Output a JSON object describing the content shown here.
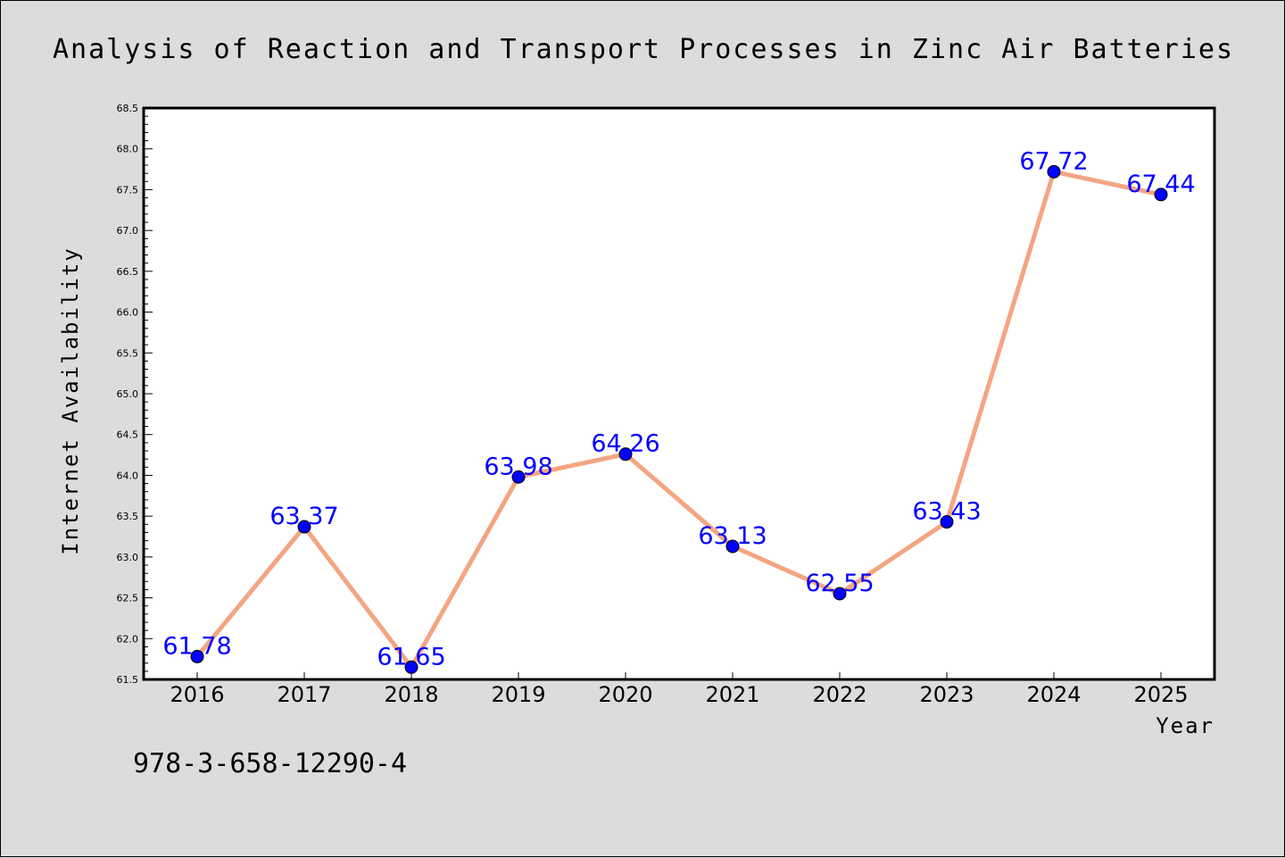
{
  "chart_data": {
    "type": "line",
    "title": "Analysis of Reaction and Transport Processes in Zinc Air Batteries",
    "xlabel": "Year",
    "ylabel": "Internet Availability",
    "categories": [
      "2016",
      "2017",
      "2018",
      "2019",
      "2020",
      "2021",
      "2022",
      "2023",
      "2024",
      "2025"
    ],
    "series": [
      {
        "values": [
          61.78,
          63.37,
          61.65,
          63.98,
          64.26,
          63.13,
          62.55,
          63.43,
          67.72,
          67.44
        ]
      }
    ],
    "ylim": [
      61.5,
      68.5
    ],
    "yticks": [
      "61.5",
      "62.0",
      "62.5",
      "63.0",
      "63.5",
      "64.0",
      "64.5",
      "65.0",
      "65.5",
      "66.0",
      "66.5",
      "67.0",
      "67.5",
      "68.0",
      "68.5"
    ],
    "data_labels": [
      "61.78",
      "63.37",
      "61.65",
      "63.98",
      "64.26",
      "63.13",
      "62.55",
      "63.43",
      "67.72",
      "67.44"
    ],
    "grid": false,
    "legend": "none",
    "colors": {
      "line": "#f4a582",
      "marker": "#0000ff",
      "label": "#0000ff",
      "background": "#dcdcdc",
      "plot_background": "#ffffff"
    }
  },
  "annotation": {
    "text": "978-3-658-12290-4"
  }
}
